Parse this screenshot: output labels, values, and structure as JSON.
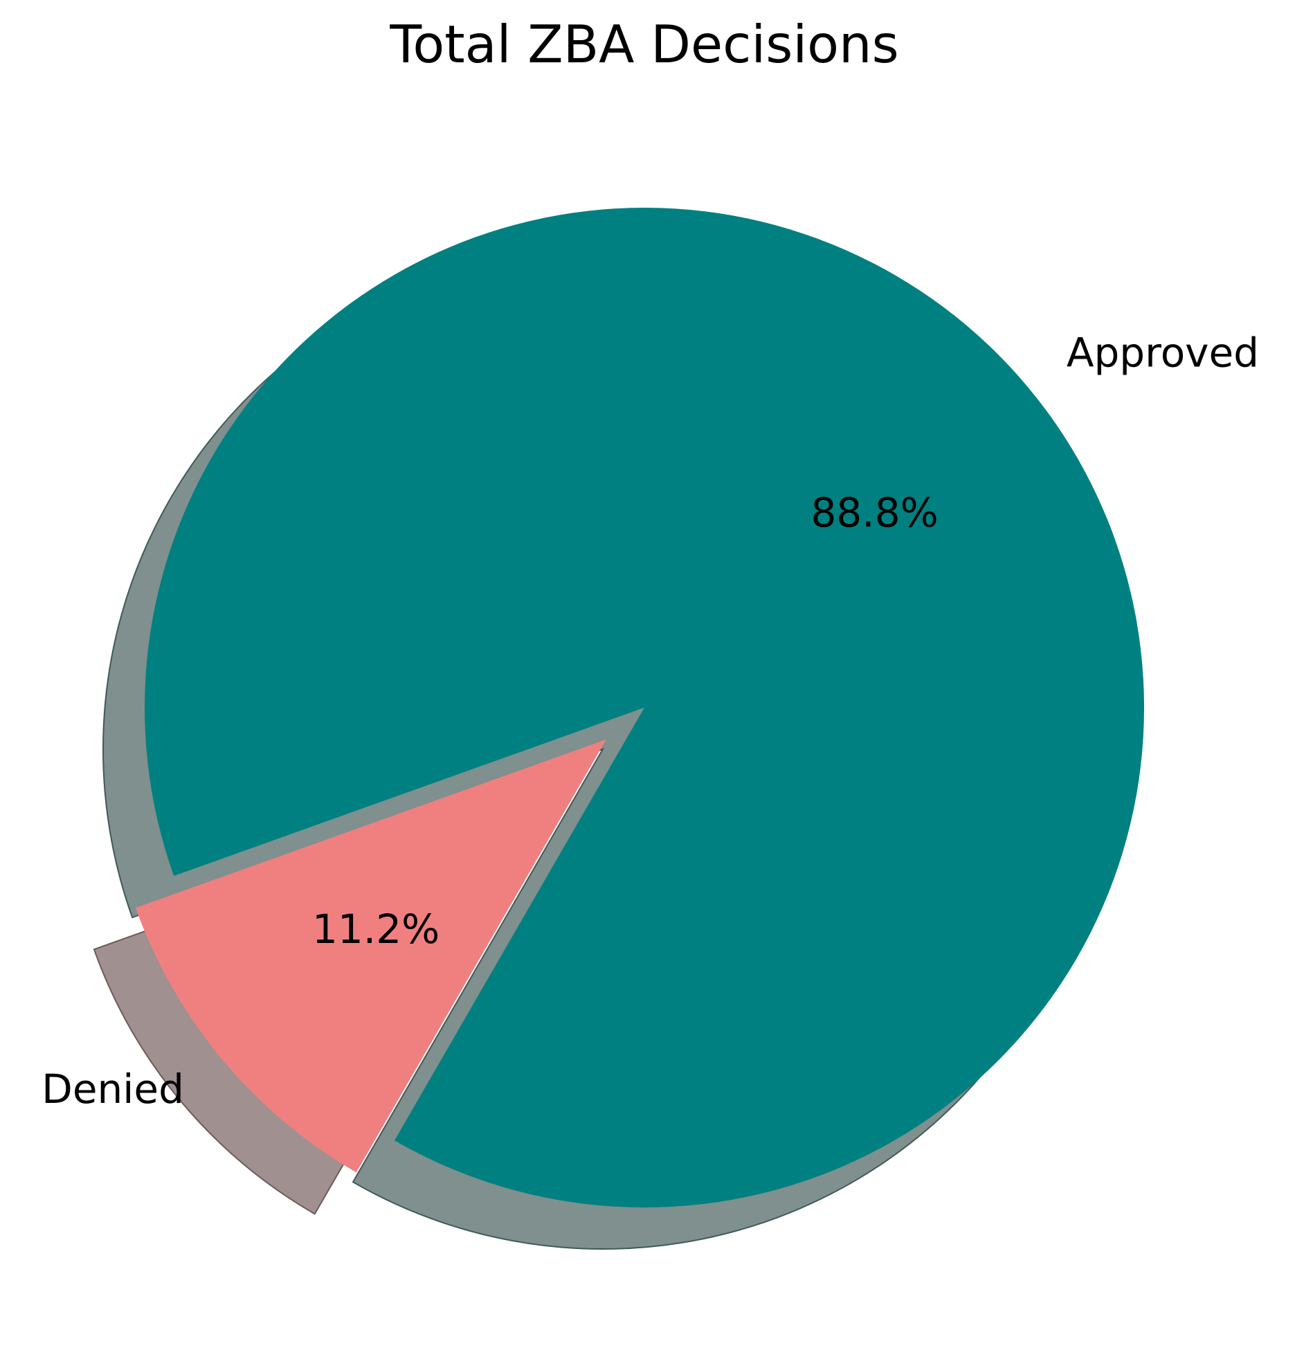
{
  "chart_data": {
    "type": "pie",
    "title": "Total ZBA Decisions",
    "slices": [
      {
        "label": "Approved",
        "value": 88.8,
        "percent_label": "88.8%",
        "color": "#008080",
        "exploded": false
      },
      {
        "label": "Denied",
        "value": 11.2,
        "percent_label": "11.2%",
        "color": "#F08080",
        "exploded": true
      }
    ],
    "shadow": true,
    "legend": "none"
  }
}
